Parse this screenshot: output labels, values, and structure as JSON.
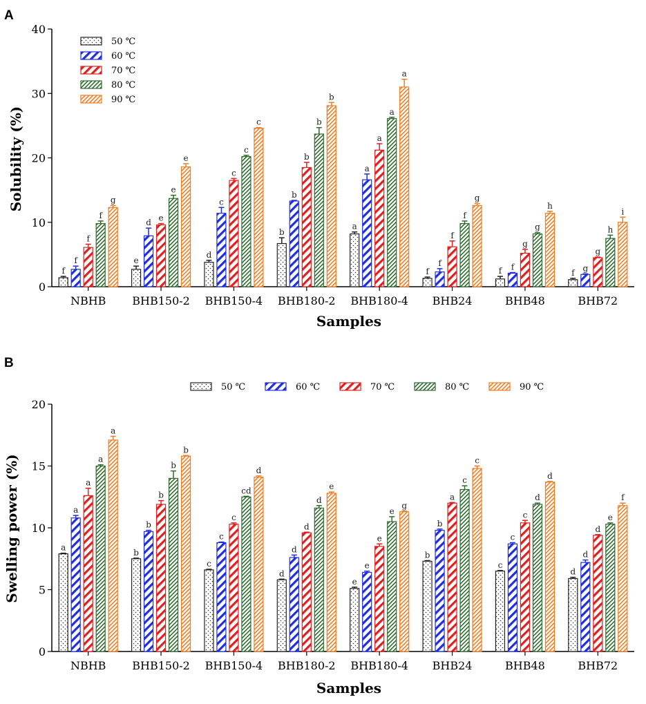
{
  "chart_data": [
    {
      "panel_label": "A",
      "type": "bar",
      "title": "",
      "xlabel": "Samples",
      "ylabel": "Solubility (%)",
      "ylim": [
        0,
        40
      ],
      "yticks": [
        "0",
        "10",
        "20",
        "30",
        "40"
      ],
      "legend_position": "top-left",
      "categories": [
        "NBHB",
        "BHB150-2",
        "BHB150-4",
        "BHB180-2",
        "BHB180-4",
        "BHB24",
        "BHB48",
        "BHB72"
      ],
      "series": [
        {
          "name": "50 ℃",
          "values": [
            1.4,
            2.7,
            3.8,
            6.7,
            8.2,
            1.3,
            1.2,
            1.1
          ],
          "errors": [
            0.2,
            0.5,
            0.3,
            0.9,
            0.3,
            0.2,
            0.4,
            0.2
          ],
          "letters": [
            "f",
            "e",
            "d",
            "b",
            "a",
            "f",
            "f",
            "f"
          ]
        },
        {
          "name": "60 ℃",
          "values": [
            2.7,
            7.9,
            11.4,
            13.3,
            16.6,
            2.3,
            2.1,
            1.9
          ],
          "errors": [
            0.5,
            1.2,
            0.9,
            0.1,
            0.9,
            0.5,
            0.1,
            0.1
          ],
          "letters": [
            "f",
            "d",
            "c",
            "b",
            "a",
            "f",
            "f",
            "g"
          ]
        },
        {
          "name": "70 ℃",
          "values": [
            6.1,
            9.6,
            16.5,
            18.5,
            21.2,
            6.2,
            5.2,
            4.5
          ],
          "errors": [
            0.5,
            0.2,
            0.3,
            0.8,
            1.0,
            0.9,
            0.6,
            0.1
          ],
          "letters": [
            "f",
            "e",
            "c",
            "b",
            "a",
            "f",
            "g",
            "g"
          ]
        },
        {
          "name": "80 ℃",
          "values": [
            9.8,
            13.7,
            20.2,
            23.7,
            26.1,
            9.8,
            8.2,
            7.5
          ],
          "errors": [
            0.4,
            0.5,
            0.2,
            1.0,
            0.2,
            0.4,
            0.2,
            0.5
          ],
          "letters": [
            "f",
            "e",
            "c",
            "b",
            "a",
            "f",
            "g",
            "h"
          ]
        },
        {
          "name": "90 ℃",
          "values": [
            12.3,
            18.6,
            24.6,
            28.1,
            31.0,
            12.6,
            11.4,
            10.0
          ],
          "errors": [
            0.3,
            0.5,
            0.1,
            0.5,
            1.2,
            0.3,
            0.3,
            0.8
          ],
          "letters": [
            "g",
            "e",
            "c",
            "b",
            "a",
            "g",
            "h",
            "i"
          ]
        }
      ]
    },
    {
      "panel_label": "B",
      "type": "bar",
      "title": "",
      "xlabel": "Samples",
      "ylabel": "Swelling power (%)",
      "ylim": [
        0,
        20
      ],
      "yticks": [
        "0",
        "5",
        "10",
        "15",
        "20"
      ],
      "legend_position": "top-center",
      "categories": [
        "NBHB",
        "BHB150-2",
        "BHB150-4",
        "BHB180-2",
        "BHB180-4",
        "BHB24",
        "BHB48",
        "BHB72"
      ],
      "series": [
        {
          "name": "50 ℃",
          "values": [
            7.9,
            7.5,
            6.6,
            5.8,
            5.1,
            7.3,
            6.5,
            5.9
          ],
          "errors": [
            0.05,
            0.05,
            0.05,
            0.05,
            0.1,
            0.05,
            0.05,
            0.1
          ],
          "letters": [
            "a",
            "b",
            "c",
            "d",
            "e",
            "b",
            "c",
            "d"
          ]
        },
        {
          "name": "60 ℃",
          "values": [
            10.8,
            9.7,
            8.8,
            7.6,
            6.4,
            9.8,
            8.7,
            7.2
          ],
          "errors": [
            0.2,
            0.1,
            0.05,
            0.2,
            0.1,
            0.1,
            0.1,
            0.2
          ],
          "letters": [
            "a",
            "b",
            "c",
            "d",
            "e",
            "b",
            "c",
            "d"
          ]
        },
        {
          "name": "70 ℃",
          "values": [
            12.6,
            11.9,
            10.3,
            9.6,
            8.5,
            12.0,
            10.4,
            9.4
          ],
          "errors": [
            0.6,
            0.3,
            0.1,
            0.05,
            0.2,
            0.05,
            0.2,
            0.05
          ],
          "letters": [
            "a",
            "b",
            "c",
            "d",
            "e",
            "a",
            "c",
            "d"
          ]
        },
        {
          "name": "80 ℃",
          "values": [
            15.0,
            14.0,
            12.5,
            11.6,
            10.5,
            13.1,
            11.9,
            10.3
          ],
          "errors": [
            0.1,
            0.6,
            0.05,
            0.2,
            0.4,
            0.3,
            0.1,
            0.1
          ],
          "letters": [
            "a",
            "b",
            "cd",
            "d",
            "e",
            "c",
            "d",
            "e"
          ]
        },
        {
          "name": "90 ℃",
          "values": [
            17.1,
            15.8,
            14.1,
            12.8,
            11.3,
            14.8,
            13.7,
            11.8
          ],
          "errors": [
            0.3,
            0.05,
            0.1,
            0.1,
            0.05,
            0.2,
            0.05,
            0.2
          ],
          "letters": [
            "a",
            "b",
            "d",
            "e",
            "g",
            "c",
            "d",
            "f"
          ]
        }
      ]
    }
  ],
  "series_styles": [
    {
      "color": "#222222",
      "pattern": "dots"
    },
    {
      "color": "#1f2de0",
      "pattern": "diagonal"
    },
    {
      "color": "#e01f1f",
      "pattern": "diagonal"
    },
    {
      "color": "#2e6b2e",
      "pattern": "diagonal-dense"
    },
    {
      "color": "#ef7d22",
      "pattern": "diagonal-dense"
    }
  ]
}
